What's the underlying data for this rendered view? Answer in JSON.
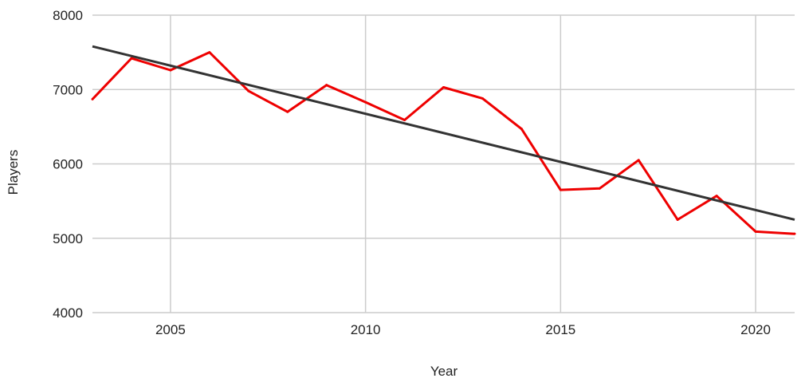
{
  "chart_data": {
    "type": "line",
    "title": "",
    "xlabel": "Year",
    "ylabel": "Players",
    "xlim": [
      2003,
      2021
    ],
    "ylim": [
      4000,
      8000
    ],
    "x_ticks": [
      2005,
      2010,
      2015,
      2020
    ],
    "y_ticks": [
      4000,
      5000,
      6000,
      7000,
      8000
    ],
    "grid": true,
    "colors": {
      "series": "#ee0000",
      "trend": "#333333",
      "grid": "#cccccc"
    },
    "series": [
      {
        "x": [
          2003,
          2004,
          2005,
          2006,
          2007,
          2008,
          2009,
          2010,
          2011,
          2012,
          2013,
          2014,
          2015,
          2016,
          2017,
          2018,
          2019,
          2020,
          2021
        ],
        "values": [
          6870,
          7420,
          7260,
          7500,
          6980,
          6700,
          7060,
          6830,
          6590,
          7030,
          6880,
          6470,
          5650,
          5670,
          6050,
          5250,
          5570,
          5090,
          5060
        ]
      }
    ],
    "trendline": {
      "x": [
        2003,
        2021
      ],
      "values": [
        7580,
        5250
      ]
    }
  }
}
